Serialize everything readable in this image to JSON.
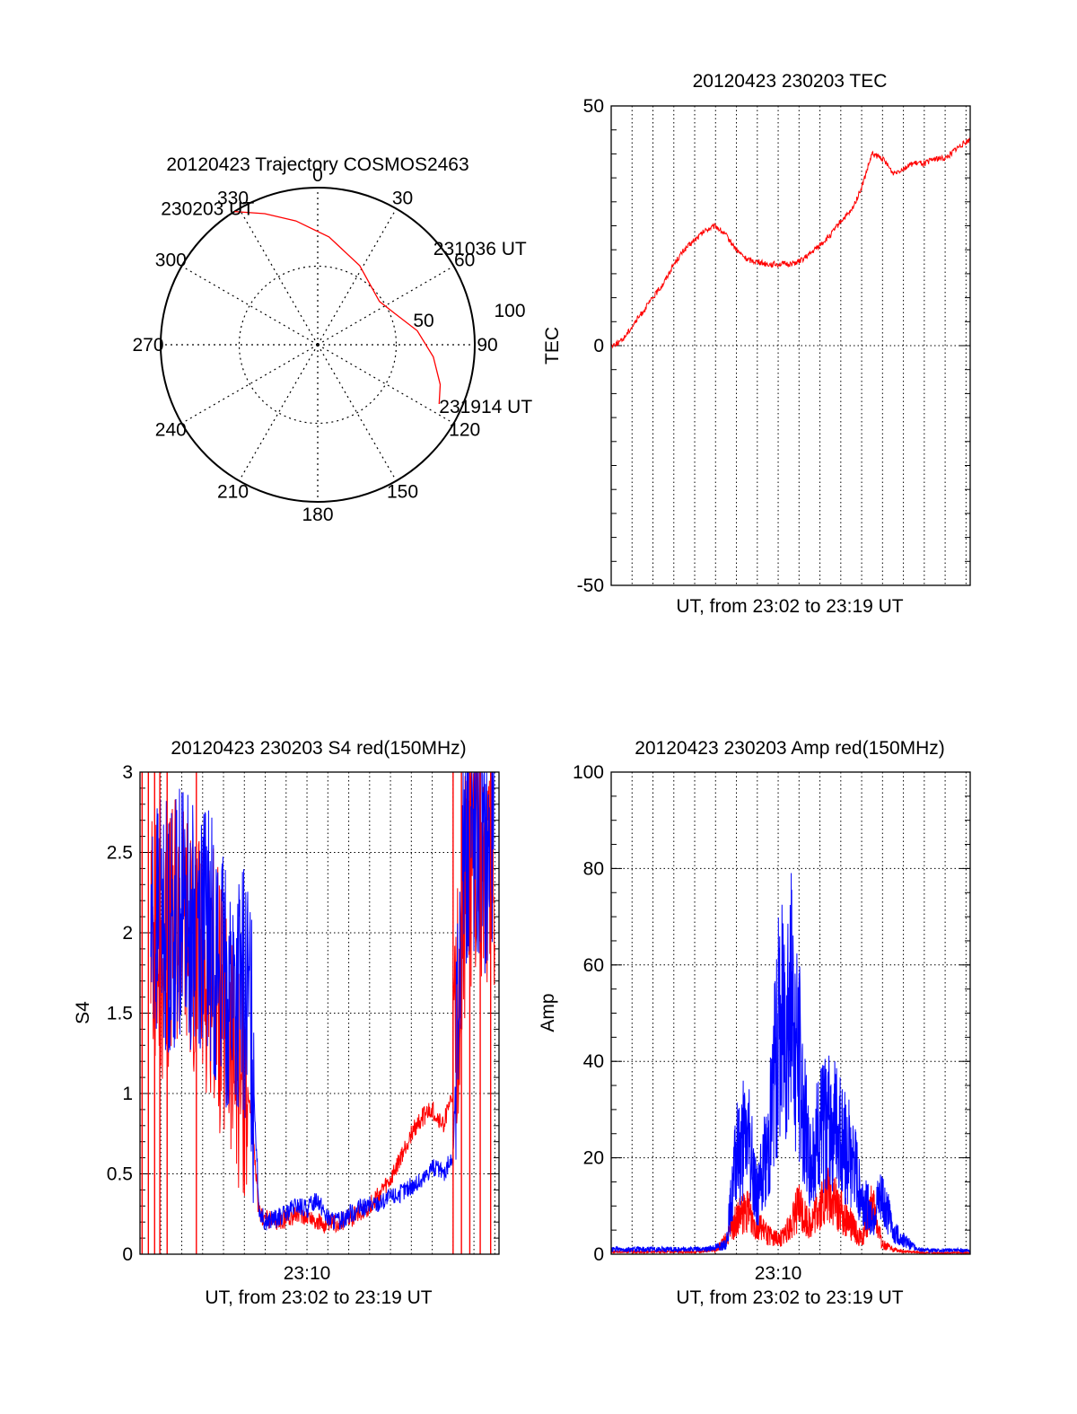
{
  "chart_data": [
    {
      "type": "polar",
      "title": "20120423 Trajectory COSMOS2463",
      "angle_labels": [
        "0",
        "30",
        "60",
        "90",
        "120",
        "150",
        "180",
        "210",
        "240",
        "270",
        "300",
        "330"
      ],
      "radius_labels": [
        "50",
        "100"
      ],
      "radius_max": 100,
      "series": [
        {
          "color": "#ff0000",
          "points": [
            {
              "az": 328,
              "r": 100
            },
            {
              "az": 338,
              "r": 90
            },
            {
              "az": 350,
              "r": 80
            },
            {
              "az": 6,
              "r": 69
            },
            {
              "az": 28,
              "r": 57
            },
            {
              "az": 55,
              "r": 48
            },
            {
              "az": 68,
              "r": 53
            },
            {
              "az": 82,
              "r": 64
            },
            {
              "az": 96,
              "r": 74
            },
            {
              "az": 108,
              "r": 82
            },
            {
              "az": 116,
              "r": 86
            }
          ]
        }
      ],
      "annotations": [
        {
          "text": "230203 UT",
          "az": 328,
          "r": 100
        },
        {
          "text": "231036 UT",
          "az": 55,
          "r": 48
        },
        {
          "text": "231914 UT",
          "az": 116,
          "r": 86
        }
      ]
    },
    {
      "type": "line",
      "title": "20120423 230203 TEC",
      "xlabel": "UT, from 23:02 to 23:19 UT",
      "ylabel": "TEC",
      "xlim": [
        0,
        17.2
      ],
      "ylim": [
        -50,
        50
      ],
      "yticks": [
        -50,
        0,
        50
      ],
      "grid": true,
      "series": [
        {
          "color": "#ff0000",
          "x": [
            0,
            0.5,
            1.0,
            1.5,
            2.0,
            2.5,
            3.0,
            3.5,
            4.0,
            4.5,
            5.0,
            5.5,
            6.0,
            6.5,
            7.0,
            7.5,
            8.0,
            8.5,
            9.0,
            9.5,
            10.0,
            10.5,
            11.0,
            11.5,
            12.0,
            12.5,
            13.0,
            13.5,
            14.0,
            14.5,
            15.0,
            15.5,
            16.0,
            16.5,
            17.2
          ],
          "y": [
            0,
            1,
            4,
            7,
            10,
            13,
            17,
            20,
            22,
            24,
            25,
            23,
            20,
            18,
            17.5,
            17,
            17,
            17,
            17.5,
            19,
            21,
            23,
            26,
            28,
            33,
            40,
            39,
            36,
            37,
            38,
            38,
            39,
            39,
            41,
            43
          ]
        }
      ]
    },
    {
      "type": "line",
      "title": "20120423 230203 S4 red(150MHz)",
      "xlabel": "UT, from 23:02 to 23:19 UT",
      "ylabel": "S4",
      "xlim": [
        0,
        17.2
      ],
      "ylim": [
        0,
        3
      ],
      "yticks": [
        0,
        0.5,
        1,
        1.5,
        2,
        2.5,
        3
      ],
      "xticks": [
        {
          "x": 8,
          "label": "23:10"
        }
      ],
      "grid": true,
      "series": [
        {
          "color": "#ff0000",
          "x": [
            0.5,
            1.0,
            1.5,
            2.0,
            2.5,
            3.0,
            3.5,
            4.0,
            4.5,
            5.0,
            5.3,
            5.7,
            6.0,
            6.5,
            7.0,
            7.5,
            8.0,
            8.5,
            9.0,
            9.5,
            10.0,
            10.5,
            11.0,
            11.5,
            12.0,
            12.5,
            13.0,
            13.5,
            14.0,
            14.5,
            15.0,
            15.5,
            16.0,
            16.5,
            17.0
          ],
          "y": [
            2.1,
            1.8,
            2.0,
            2.1,
            1.9,
            1.8,
            1.8,
            1.4,
            1.2,
            1.1,
            0.9,
            0.25,
            0.22,
            0.2,
            0.22,
            0.25,
            0.24,
            0.2,
            0.18,
            0.2,
            0.22,
            0.25,
            0.3,
            0.38,
            0.45,
            0.6,
            0.75,
            0.85,
            0.9,
            0.8,
            1.0,
            2.2,
            2.5,
            2.5,
            2.4
          ]
        },
        {
          "color": "#0000ff",
          "x": [
            0.5,
            1.0,
            1.5,
            2.0,
            2.5,
            3.0,
            3.5,
            4.0,
            4.5,
            5.0,
            5.3,
            5.7,
            6.0,
            6.5,
            7.0,
            7.5,
            8.0,
            8.5,
            9.0,
            9.5,
            10.0,
            10.5,
            11.0,
            11.5,
            12.0,
            12.5,
            13.0,
            13.5,
            14.0,
            14.5,
            15.0,
            15.5,
            16.0,
            16.5,
            17.0
          ],
          "y": [
            2.0,
            2.1,
            2.0,
            2.2,
            2.0,
            2.1,
            1.9,
            1.7,
            1.6,
            1.6,
            1.5,
            0.28,
            0.2,
            0.22,
            0.25,
            0.3,
            0.28,
            0.35,
            0.22,
            0.2,
            0.25,
            0.28,
            0.3,
            0.32,
            0.35,
            0.38,
            0.42,
            0.45,
            0.55,
            0.5,
            0.6,
            2.6,
            2.6,
            2.5,
            2.6
          ]
        }
      ]
    },
    {
      "type": "line",
      "title": "20120423 230203 Amp red(150MHz)",
      "xlabel": "UT, from 23:02 to 23:19 UT",
      "ylabel": "Amp",
      "xlim": [
        0,
        17.2
      ],
      "ylim": [
        0,
        100
      ],
      "yticks": [
        0,
        20,
        40,
        60,
        80,
        100
      ],
      "xticks": [
        {
          "x": 8,
          "label": "23:10"
        }
      ],
      "grid": true,
      "series": [
        {
          "color": "#ff0000",
          "x": [
            0,
            4.0,
            5.0,
            5.5,
            6.0,
            6.5,
            7.0,
            7.5,
            8.0,
            8.5,
            9.0,
            9.5,
            10.0,
            10.5,
            11.0,
            11.5,
            12.0,
            12.5,
            13.0,
            13.5,
            14.0,
            14.5,
            15.0,
            17.2
          ],
          "y": [
            0.5,
            0.5,
            0.8,
            3,
            7,
            9,
            6,
            4,
            3,
            5,
            10,
            6,
            10,
            12,
            9,
            6,
            3,
            10,
            2,
            1,
            0.5,
            0.5,
            0.3,
            0.3
          ]
        },
        {
          "color": "#0000ff",
          "x": [
            0,
            4.5,
            5.5,
            6.0,
            6.5,
            7.0,
            7.5,
            8.0,
            8.5,
            9.0,
            9.5,
            10.0,
            10.5,
            11.0,
            11.5,
            12.0,
            12.5,
            13.0,
            13.5,
            14.0,
            14.5,
            15.0,
            17.2
          ],
          "y": [
            1,
            1,
            2,
            20,
            25,
            12,
            22,
            45,
            55,
            40,
            18,
            25,
            28,
            24,
            20,
            12,
            8,
            12,
            5,
            3,
            1.5,
            0.8,
            0.8
          ]
        }
      ]
    }
  ]
}
